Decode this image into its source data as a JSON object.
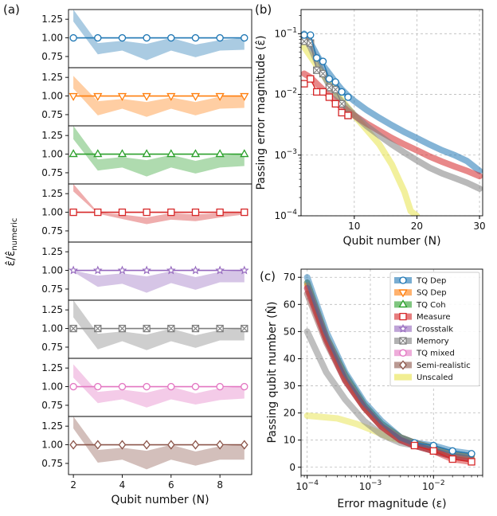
{
  "panel_labels": {
    "a": "(a)",
    "b": "(b)",
    "c": "(c)"
  },
  "chart_data": [
    {
      "id": "a",
      "type": "line",
      "xlabel": "Qubit number (N)",
      "ylabel": "ε̂/ε̂_numeric",
      "x_ticks": [
        "2",
        "4",
        "6",
        "8"
      ],
      "y_ticks": [
        "0.75",
        "1.00",
        "1.25"
      ],
      "xlim": [
        1.8,
        9.3
      ],
      "ylim": [
        0.6,
        1.38
      ],
      "x": [
        2,
        3,
        4,
        5,
        6,
        7,
        8,
        9
      ],
      "series": [
        {
          "name": "TQ Dep",
          "color": "#1f77b4",
          "marker": "circle",
          "values": [
            1,
            1,
            1,
            1,
            1,
            1,
            1,
            1
          ],
          "band_upper": [
            1.38,
            0.93,
            0.96,
            0.92,
            1.0,
            0.91,
            0.97,
            1.0
          ],
          "band_lower": [
            1.22,
            0.78,
            0.83,
            0.7,
            0.83,
            0.74,
            0.83,
            0.84
          ]
        },
        {
          "name": "SQ Dep",
          "color": "#ff7f0e",
          "marker": "triangle-down",
          "values": [
            1,
            1,
            1,
            1,
            1,
            1,
            1,
            1
          ],
          "band_upper": [
            1.27,
            0.93,
            0.96,
            0.92,
            0.98,
            0.92,
            0.99,
            1.0
          ],
          "band_lower": [
            1.1,
            0.74,
            0.83,
            0.72,
            0.83,
            0.74,
            0.83,
            0.84
          ]
        },
        {
          "name": "TQ Coh",
          "color": "#2ca02c",
          "marker": "triangle-up",
          "values": [
            1,
            1,
            1,
            1,
            1,
            1,
            1,
            1
          ],
          "band_upper": [
            1.38,
            0.93,
            0.96,
            0.92,
            0.99,
            0.91,
            0.98,
            1.0
          ],
          "band_lower": [
            1.2,
            0.78,
            0.82,
            0.7,
            0.82,
            0.74,
            0.82,
            0.84
          ]
        },
        {
          "name": "Measure",
          "color": "#d62728",
          "marker": "square",
          "values": [
            1,
            1,
            1,
            1,
            1,
            1,
            1,
            1
          ],
          "band_upper": [
            1.38,
            1.0,
            0.97,
            0.93,
            0.99,
            0.97,
            0.99,
            1.01
          ],
          "band_lower": [
            1.28,
            0.98,
            0.91,
            0.84,
            0.9,
            0.88,
            0.93,
            0.97
          ]
        },
        {
          "name": "Crosstalk",
          "color": "#9467bd",
          "marker": "star",
          "values": [
            1,
            1,
            1,
            1,
            1,
            1,
            1,
            1
          ],
          "band_upper": [
            1.0,
            0.93,
            0.96,
            0.92,
            0.99,
            0.91,
            0.98,
            1.0
          ],
          "band_lower": [
            0.98,
            0.78,
            0.82,
            0.7,
            0.83,
            0.74,
            0.84,
            0.84
          ]
        },
        {
          "name": "Memory",
          "color": "#7f7f7f",
          "marker": "x-square",
          "values": [
            1,
            1,
            1,
            1,
            1,
            1,
            1,
            1
          ],
          "band_upper": [
            1.38,
            0.93,
            0.96,
            0.92,
            1.0,
            0.91,
            0.98,
            1.0
          ],
          "band_lower": [
            1.15,
            0.72,
            0.83,
            0.71,
            0.83,
            0.74,
            0.84,
            0.84
          ]
        },
        {
          "name": "TQ mixed",
          "color": "#e377c2",
          "marker": "circle",
          "values": [
            1,
            1,
            1,
            1,
            1,
            1,
            1,
            1
          ],
          "band_upper": [
            1.3,
            0.93,
            0.96,
            0.92,
            1.0,
            0.91,
            0.98,
            1.0
          ],
          "band_lower": [
            1.12,
            0.78,
            0.83,
            0.72,
            0.83,
            0.76,
            0.82,
            0.84
          ]
        },
        {
          "name": "Semi-realistic",
          "color": "#8c564b",
          "marker": "diamond",
          "values": [
            1,
            1,
            1,
            1,
            1,
            1,
            1,
            1
          ],
          "band_upper": [
            1.38,
            0.93,
            0.96,
            0.92,
            1.0,
            0.91,
            0.98,
            1.0
          ],
          "band_lower": [
            1.22,
            0.76,
            0.8,
            0.67,
            0.8,
            0.72,
            0.8,
            0.8
          ]
        }
      ]
    },
    {
      "id": "b",
      "type": "line",
      "xlabel": "Qubit number (N)",
      "ylabel": "Passing error magnitude (ε̂)",
      "y_scale": "log",
      "xlim": [
        1.5,
        30.5
      ],
      "ylim": [
        0.0001,
        0.25
      ],
      "x_ticks": [
        "10",
        "20",
        "30"
      ],
      "y_ticks": [
        "10^-4",
        "10^-3",
        "10^-2",
        "10^-1"
      ],
      "grid": true,
      "series": [
        {
          "name": "TQ Dep",
          "color": "#1f77b4",
          "x": [
            2,
            3,
            4,
            5,
            6,
            7,
            8,
            9,
            10,
            12,
            14,
            16,
            18,
            20,
            22,
            24,
            26,
            28,
            30
          ],
          "values": [
            0.1,
            0.07,
            0.045,
            0.03,
            0.022,
            0.016,
            0.012,
            0.0095,
            0.0078,
            0.0055,
            0.0041,
            0.0031,
            0.0024,
            0.0019,
            0.0015,
            0.0012,
            0.001,
            0.0008,
            0.00055
          ],
          "markers_x": [
            2,
            3,
            4,
            5,
            6,
            7,
            8,
            9
          ],
          "markers_y": [
            0.095,
            0.095,
            0.04,
            0.035,
            0.018,
            0.016,
            0.011,
            0.009
          ]
        },
        {
          "name": "Measure",
          "color": "#d62728",
          "x": [
            2,
            3,
            4,
            5,
            6,
            7,
            8,
            9,
            10,
            12,
            14,
            16,
            18,
            20,
            22,
            24,
            26,
            28,
            30
          ],
          "values": [
            0.022,
            0.019,
            0.015,
            0.012,
            0.0095,
            0.0078,
            0.0065,
            0.0053,
            0.0045,
            0.0033,
            0.0025,
            0.0019,
            0.0015,
            0.0012,
            0.00095,
            0.00078,
            0.00065,
            0.00055,
            0.00045
          ],
          "markers_x": [
            2,
            3,
            4,
            5,
            6,
            7,
            8,
            9
          ],
          "markers_y": [
            0.015,
            0.018,
            0.011,
            0.011,
            0.009,
            0.007,
            0.005,
            0.0045
          ]
        },
        {
          "name": "Memory",
          "color": "#7f7f7f",
          "x": [
            2,
            3,
            4,
            5,
            6,
            7,
            8,
            9,
            10,
            12,
            14,
            16,
            18,
            20,
            22,
            24,
            26,
            28,
            30
          ],
          "values": [
            0.09,
            0.06,
            0.035,
            0.022,
            0.014,
            0.01,
            0.0075,
            0.0058,
            0.0046,
            0.003,
            0.0021,
            0.0015,
            0.0011,
            0.00082,
            0.00062,
            0.0005,
            0.00042,
            0.00035,
            0.00028
          ],
          "markers_x": [
            2,
            3,
            4,
            5,
            6,
            7,
            8,
            9
          ],
          "markers_y": [
            0.075,
            0.07,
            0.025,
            0.022,
            0.013,
            0.012,
            0.007,
            0.0045
          ]
        },
        {
          "name": "Unscaled",
          "color": "#e8e34a",
          "x": [
            2,
            4,
            6,
            8,
            10,
            12,
            14,
            16,
            18,
            19,
            20
          ],
          "values": [
            0.06,
            0.03,
            0.015,
            0.008,
            0.0045,
            0.0026,
            0.0015,
            0.0007,
            0.00025,
            0.00012,
            0.0001
          ]
        }
      ]
    },
    {
      "id": "c",
      "type": "line",
      "xlabel": "Error magnitude (ε)",
      "ylabel": "Passing qubit number (N̂)",
      "x_scale": "log",
      "xlim": [
        8e-05,
        0.06
      ],
      "ylim": [
        -3,
        73
      ],
      "x_ticks": [
        "10^-4",
        "10^-3",
        "10^-2"
      ],
      "y_ticks": [
        "0",
        "10",
        "20",
        "30",
        "40",
        "50",
        "60",
        "70"
      ],
      "grid": true,
      "legend_position": "top-right",
      "series": [
        {
          "name": "TQ Dep",
          "color": "#1f77b4",
          "marker": "circle",
          "x": [
            0.0001,
            0.0002,
            0.0004,
            0.0008,
            0.0015,
            0.003,
            0.005,
            0.01,
            0.02,
            0.04
          ],
          "values": [
            70,
            50,
            35,
            24,
            17,
            11,
            9,
            8,
            6,
            5
          ]
        },
        {
          "name": "SQ Dep",
          "color": "#ff7f0e",
          "marker": "triangle-down",
          "x": [
            0.0001,
            0.0002,
            0.0004,
            0.0008,
            0.0015,
            0.003,
            0.005,
            0.01,
            0.02,
            0.04
          ],
          "values": [
            67,
            48,
            33,
            22,
            15,
            11,
            9,
            7,
            5,
            4
          ]
        },
        {
          "name": "TQ Coh",
          "color": "#2ca02c",
          "marker": "triangle-up",
          "x": [
            0.0001,
            0.0002,
            0.0004,
            0.0008,
            0.0015,
            0.003,
            0.005,
            0.01,
            0.02,
            0.04
          ],
          "values": [
            68,
            48,
            34,
            23,
            16,
            11,
            9,
            7,
            5,
            4
          ]
        },
        {
          "name": "Measure",
          "color": "#d62728",
          "marker": "square",
          "x": [
            0.0001,
            0.0002,
            0.0004,
            0.0008,
            0.0015,
            0.003,
            0.005,
            0.01,
            0.02,
            0.04
          ],
          "values": [
            66,
            47,
            32,
            22,
            15,
            10,
            8,
            6,
            3,
            2
          ]
        },
        {
          "name": "Crosstalk",
          "color": "#9467bd",
          "marker": "star",
          "x": [
            0.0001,
            0.0002,
            0.0004,
            0.0008,
            0.0015,
            0.003,
            0.005,
            0.01,
            0.02,
            0.04
          ],
          "values": [
            66,
            47,
            32,
            22,
            15,
            10,
            8,
            6,
            4,
            3
          ]
        },
        {
          "name": "Memory",
          "color": "#7f7f7f",
          "marker": "x-square",
          "x": [
            0.0001,
            0.0002,
            0.0004,
            0.0008,
            0.0015,
            0.003,
            0.005,
            0.01,
            0.02,
            0.04
          ],
          "values": [
            50,
            35,
            25,
            17,
            12,
            9,
            8,
            6,
            4,
            3
          ]
        },
        {
          "name": "TQ mixed",
          "color": "#e377c2",
          "marker": "circle",
          "x": [
            0.0001,
            0.0002,
            0.0004,
            0.0008,
            0.0015,
            0.003,
            0.005,
            0.01,
            0.02,
            0.04
          ],
          "values": [
            68,
            48,
            34,
            23,
            16,
            11,
            9,
            7,
            5,
            4
          ]
        },
        {
          "name": "Semi-realistic",
          "color": "#8c564b",
          "marker": "diamond",
          "x": [
            0.0001,
            0.0002,
            0.0004,
            0.0008,
            0.0015,
            0.003,
            0.005,
            0.01,
            0.02,
            0.04
          ],
          "values": [
            64,
            46,
            32,
            22,
            15,
            10,
            8,
            6,
            4,
            3
          ]
        },
        {
          "name": "Unscaled",
          "color": "#e8e34a",
          "marker": "none",
          "x": [
            0.0001,
            0.0003,
            0.0006,
            0.001,
            0.002,
            0.003
          ],
          "values": [
            19,
            18,
            16,
            14,
            11,
            10
          ]
        }
      ],
      "markers": {
        "TQ Dep": {
          "x": [
            0.005,
            0.01,
            0.02,
            0.04
          ],
          "values": [
            9,
            8,
            6,
            5
          ]
        },
        "Measure": {
          "x": [
            0.005,
            0.01,
            0.02,
            0.04
          ],
          "values": [
            8,
            6,
            3,
            2
          ]
        }
      }
    }
  ]
}
